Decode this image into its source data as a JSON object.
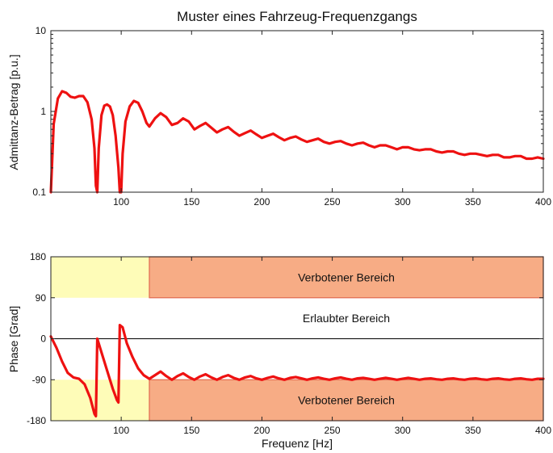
{
  "chart_data": [
    {
      "type": "line",
      "title": "Muster eines Fahrzeug-Frequenzgangs",
      "ylabel": "Admittanz-Betrag [p.u.]",
      "xlabel": "",
      "xlim": [
        50,
        400
      ],
      "ylim": [
        0.1,
        10
      ],
      "yscale": "log",
      "grid": false,
      "x_ticks": [
        "100",
        "150",
        "200",
        "250",
        "300",
        "350",
        "400"
      ],
      "y_ticks": [
        "0.1",
        "1",
        "10"
      ],
      "series": [
        {
          "color": "#ee1111",
          "points": [
            [
              50,
              0.1
            ],
            [
              52,
              0.7
            ],
            [
              55,
              1.45
            ],
            [
              58,
              1.78
            ],
            [
              61,
              1.7
            ],
            [
              64,
              1.52
            ],
            [
              67,
              1.48
            ],
            [
              70,
              1.55
            ],
            [
              73,
              1.55
            ],
            [
              76,
              1.3
            ],
            [
              79,
              0.8
            ],
            [
              81,
              0.35
            ],
            [
              82,
              0.12
            ],
            [
              83,
              0.1
            ],
            [
              84,
              0.35
            ],
            [
              86,
              0.9
            ],
            [
              88,
              1.18
            ],
            [
              90,
              1.22
            ],
            [
              92,
              1.15
            ],
            [
              94,
              0.9
            ],
            [
              96,
              0.5
            ],
            [
              98,
              0.2
            ],
            [
              99,
              0.1
            ],
            [
              100,
              0.1
            ],
            [
              101,
              0.3
            ],
            [
              103,
              0.75
            ],
            [
              106,
              1.15
            ],
            [
              109,
              1.35
            ],
            [
              112,
              1.28
            ],
            [
              115,
              1.0
            ],
            [
              118,
              0.72
            ],
            [
              120,
              0.65
            ],
            [
              124,
              0.82
            ],
            [
              128,
              0.95
            ],
            [
              132,
              0.85
            ],
            [
              136,
              0.68
            ],
            [
              140,
              0.72
            ],
            [
              144,
              0.82
            ],
            [
              148,
              0.75
            ],
            [
              152,
              0.6
            ],
            [
              156,
              0.66
            ],
            [
              160,
              0.72
            ],
            [
              164,
              0.63
            ],
            [
              168,
              0.55
            ],
            [
              172,
              0.6
            ],
            [
              176,
              0.64
            ],
            [
              180,
              0.56
            ],
            [
              184,
              0.5
            ],
            [
              188,
              0.54
            ],
            [
              192,
              0.58
            ],
            [
              196,
              0.52
            ],
            [
              200,
              0.47
            ],
            [
              204,
              0.5
            ],
            [
              208,
              0.53
            ],
            [
              212,
              0.48
            ],
            [
              216,
              0.44
            ],
            [
              220,
              0.47
            ],
            [
              224,
              0.49
            ],
            [
              228,
              0.45
            ],
            [
              232,
              0.42
            ],
            [
              236,
              0.44
            ],
            [
              240,
              0.46
            ],
            [
              244,
              0.42
            ],
            [
              248,
              0.4
            ],
            [
              252,
              0.42
            ],
            [
              256,
              0.43
            ],
            [
              260,
              0.4
            ],
            [
              264,
              0.38
            ],
            [
              268,
              0.4
            ],
            [
              272,
              0.41
            ],
            [
              276,
              0.38
            ],
            [
              280,
              0.36
            ],
            [
              284,
              0.38
            ],
            [
              288,
              0.38
            ],
            [
              292,
              0.36
            ],
            [
              296,
              0.34
            ],
            [
              300,
              0.36
            ],
            [
              304,
              0.36
            ],
            [
              308,
              0.34
            ],
            [
              312,
              0.33
            ],
            [
              316,
              0.34
            ],
            [
              320,
              0.34
            ],
            [
              324,
              0.32
            ],
            [
              328,
              0.31
            ],
            [
              332,
              0.32
            ],
            [
              336,
              0.32
            ],
            [
              340,
              0.3
            ],
            [
              344,
              0.29
            ],
            [
              348,
              0.3
            ],
            [
              352,
              0.3
            ],
            [
              356,
              0.29
            ],
            [
              360,
              0.28
            ],
            [
              364,
              0.29
            ],
            [
              368,
              0.29
            ],
            [
              372,
              0.27
            ],
            [
              376,
              0.27
            ],
            [
              380,
              0.28
            ],
            [
              384,
              0.28
            ],
            [
              388,
              0.26
            ],
            [
              392,
              0.26
            ],
            [
              396,
              0.27
            ],
            [
              400,
              0.26
            ]
          ]
        }
      ]
    },
    {
      "type": "line",
      "title": "",
      "ylabel": "Phase [Grad]",
      "xlabel": "Frequenz [Hz]",
      "xlim": [
        50,
        400
      ],
      "ylim": [
        -180,
        180
      ],
      "grid": false,
      "x_ticks": [
        "100",
        "150",
        "200",
        "250",
        "300",
        "350",
        "400"
      ],
      "y_ticks": [
        "-180",
        "-90",
        "0",
        "90",
        "180"
      ],
      "zero_line": 0,
      "regions": [
        {
          "x": [
            50,
            120
          ],
          "y": [
            90,
            180
          ],
          "color": "#fefcb8",
          "label": ""
        },
        {
          "x": [
            120,
            400
          ],
          "y": [
            90,
            180
          ],
          "color": "#f7ac85",
          "label": "Verbotener Bereich"
        },
        {
          "x": [
            50,
            120
          ],
          "y": [
            -180,
            -90
          ],
          "color": "#fefcb8",
          "label": ""
        },
        {
          "x": [
            120,
            400
          ],
          "y": [
            -180,
            -90
          ],
          "color": "#f7ac85",
          "label": "Verbotener Bereich"
        }
      ],
      "annotations": [
        {
          "text": "Erlaubter Bereich",
          "x": 260,
          "y": 45
        }
      ],
      "series": [
        {
          "color": "#ee1111",
          "points": [
            [
              50,
              5
            ],
            [
              54,
              -20
            ],
            [
              58,
              -50
            ],
            [
              62,
              -75
            ],
            [
              66,
              -85
            ],
            [
              70,
              -88
            ],
            [
              74,
              -100
            ],
            [
              78,
              -130
            ],
            [
              81,
              -165
            ],
            [
              82,
              -170
            ],
            [
              83,
              0
            ],
            [
              86,
              -30
            ],
            [
              90,
              -70
            ],
            [
              94,
              -110
            ],
            [
              97,
              -135
            ],
            [
              98,
              -140
            ],
            [
              99,
              30
            ],
            [
              101,
              25
            ],
            [
              104,
              -10
            ],
            [
              108,
              -40
            ],
            [
              112,
              -65
            ],
            [
              116,
              -80
            ],
            [
              120,
              -88
            ],
            [
              124,
              -80
            ],
            [
              128,
              -72
            ],
            [
              132,
              -82
            ],
            [
              136,
              -90
            ],
            [
              140,
              -82
            ],
            [
              144,
              -76
            ],
            [
              148,
              -84
            ],
            [
              152,
              -90
            ],
            [
              156,
              -83
            ],
            [
              160,
              -78
            ],
            [
              164,
              -85
            ],
            [
              168,
              -90
            ],
            [
              172,
              -84
            ],
            [
              176,
              -80
            ],
            [
              180,
              -86
            ],
            [
              184,
              -90
            ],
            [
              188,
              -85
            ],
            [
              192,
              -82
            ],
            [
              196,
              -87
            ],
            [
              200,
              -90
            ],
            [
              204,
              -86
            ],
            [
              208,
              -83
            ],
            [
              212,
              -87
            ],
            [
              216,
              -90
            ],
            [
              220,
              -86
            ],
            [
              224,
              -84
            ],
            [
              228,
              -87
            ],
            [
              232,
              -90
            ],
            [
              236,
              -87
            ],
            [
              240,
              -85
            ],
            [
              244,
              -88
            ],
            [
              248,
              -90
            ],
            [
              252,
              -87
            ],
            [
              256,
              -85
            ],
            [
              260,
              -88
            ],
            [
              264,
              -90
            ],
            [
              268,
              -87
            ],
            [
              272,
              -86
            ],
            [
              276,
              -88
            ],
            [
              280,
              -90
            ],
            [
              284,
              -88
            ],
            [
              288,
              -86
            ],
            [
              292,
              -88
            ],
            [
              296,
              -90
            ],
            [
              300,
              -88
            ],
            [
              304,
              -86
            ],
            [
              308,
              -88
            ],
            [
              312,
              -90
            ],
            [
              316,
              -88
            ],
            [
              320,
              -87
            ],
            [
              324,
              -89
            ],
            [
              328,
              -90
            ],
            [
              332,
              -88
            ],
            [
              336,
              -87
            ],
            [
              340,
              -89
            ],
            [
              344,
              -90
            ],
            [
              348,
              -88
            ],
            [
              352,
              -87
            ],
            [
              356,
              -89
            ],
            [
              360,
              -90
            ],
            [
              364,
              -88
            ],
            [
              368,
              -87
            ],
            [
              372,
              -89
            ],
            [
              376,
              -90
            ],
            [
              380,
              -88
            ],
            [
              384,
              -87
            ],
            [
              388,
              -89
            ],
            [
              392,
              -90
            ],
            [
              396,
              -88
            ],
            [
              400,
              -88
            ]
          ]
        }
      ]
    }
  ]
}
